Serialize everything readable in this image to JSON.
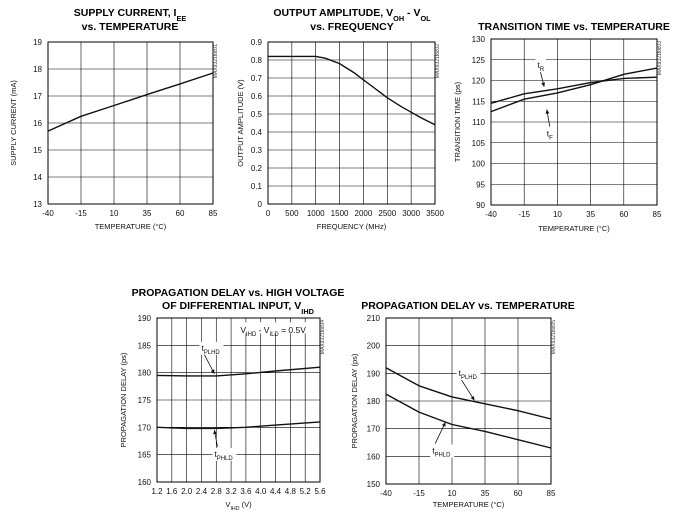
{
  "chart_data": [
    {
      "type": "line",
      "title_lines": [
        [
          {
            "t": "SUPPLY CURRENT, I"
          },
          {
            "t": "EE",
            "sub": true
          }
        ],
        [
          {
            "t": "vs. TEMPERATURE"
          }
        ]
      ],
      "xlabel": "TEMPERATURE (°C)",
      "ylabel": "SUPPLY CURRENT (mA)",
      "code": "MAX9321toc01",
      "xlim": [
        -40,
        85
      ],
      "ylim": [
        13,
        19
      ],
      "xticks": [
        -40,
        -15,
        10,
        35,
        60,
        85
      ],
      "yticks": [
        13,
        14,
        15,
        16,
        17,
        18,
        19
      ],
      "grid": true,
      "series": [
        {
          "x": [
            -40,
            -15,
            10,
            35,
            60,
            85
          ],
          "y": [
            15.7,
            16.25,
            16.65,
            17.05,
            17.45,
            17.85
          ]
        }
      ],
      "annotations": []
    },
    {
      "type": "line",
      "title_lines": [
        [
          {
            "t": "OUTPUT AMPLITUDE, V"
          },
          {
            "t": "OH",
            "sub": true
          },
          {
            "t": " - V"
          },
          {
            "t": "OL",
            "sub": true
          }
        ],
        [
          {
            "t": "vs. FREQUENCY"
          }
        ]
      ],
      "xlabel": "FREQUENCY (MHz)",
      "ylabel": "OUTPUT AMPLITUDE (V)",
      "code": "MAX9321toc02",
      "xlim": [
        0,
        3500
      ],
      "ylim": [
        0,
        0.9
      ],
      "xticks": [
        0,
        500,
        1000,
        1500,
        2000,
        2500,
        3000,
        3500
      ],
      "yticks": [
        0,
        0.1,
        0.2,
        0.3,
        0.4,
        0.5,
        0.6,
        0.7,
        0.8,
        0.9
      ],
      "grid": true,
      "series": [
        {
          "x": [
            0,
            500,
            800,
            1000,
            1200,
            1500,
            1800,
            2000,
            2200,
            2500,
            2800,
            3000,
            3200,
            3500
          ],
          "y": [
            0.82,
            0.82,
            0.82,
            0.82,
            0.81,
            0.78,
            0.73,
            0.69,
            0.65,
            0.59,
            0.54,
            0.51,
            0.48,
            0.44
          ]
        }
      ],
      "annotations": []
    },
    {
      "type": "line",
      "title_lines": [
        [
          {
            "t": "TRANSITION TIME vs. TEMPERATURE"
          }
        ]
      ],
      "xlabel": "TEMPERATURE (°C)",
      "ylabel": "TRANSITION TIME (ps)",
      "code": "MAX9321toc03",
      "xlim": [
        -40,
        85
      ],
      "ylim": [
        90,
        130
      ],
      "xticks": [
        -40,
        -15,
        10,
        35,
        60,
        85
      ],
      "yticks": [
        90,
        95,
        100,
        105,
        110,
        115,
        120,
        125,
        130
      ],
      "grid": true,
      "series": [
        {
          "name": "tR",
          "x": [
            -40,
            -15,
            10,
            35,
            60,
            85
          ],
          "y": [
            112.5,
            115.5,
            117.0,
            119.0,
            121.5,
            123.0
          ]
        },
        {
          "name": "tF",
          "x": [
            -40,
            -15,
            10,
            35,
            60,
            85
          ],
          "y": [
            114.5,
            116.8,
            118.0,
            119.5,
            120.5,
            120.8
          ]
        }
      ],
      "annotations": [
        {
          "text": "t",
          "sub": "R",
          "x": -5,
          "y": 123,
          "ax": 0,
          "ay": 118.5
        },
        {
          "text": "t",
          "sub": "F",
          "x": 2,
          "y": 106.5,
          "ax": 2,
          "ay": 113
        }
      ]
    },
    {
      "type": "line",
      "title_lines": [
        [
          {
            "t": "PROPAGATION DELAY vs. HIGH VOLTAGE"
          }
        ],
        [
          {
            "t": "OF DIFFERENTIAL INPUT, V"
          },
          {
            "t": "IHD",
            "sub": true
          }
        ]
      ],
      "xlabel_parts": [
        {
          "t": "V"
        },
        {
          "t": "IHD",
          "sub": true
        },
        {
          "t": " (V)"
        }
      ],
      "ylabel": "PROPAGATION DELAY (ps)",
      "code": "MAX9321toc04",
      "xlim": [
        1.2,
        5.6
      ],
      "ylim": [
        160,
        190
      ],
      "xticks": [
        1.2,
        1.6,
        2.0,
        2.4,
        2.8,
        3.2,
        3.6,
        4.0,
        4.4,
        4.8,
        5.2,
        5.6
      ],
      "xtick_labels": [
        "1.2",
        "1.6",
        "2.0",
        "2.4",
        "2.8",
        "3.2",
        "3.6",
        "4.0",
        "4.4",
        "4.8",
        "5.2",
        "5.6"
      ],
      "yticks": [
        160,
        165,
        170,
        175,
        180,
        185,
        190
      ],
      "grid": true,
      "note_parts": [
        {
          "t": "V"
        },
        {
          "t": "IHD",
          "sub": true
        },
        {
          "t": " - V"
        },
        {
          "t": "ILD",
          "sub": true
        },
        {
          "t": " = 0.5V"
        }
      ],
      "series": [
        {
          "name": "tPLHD",
          "x": [
            1.2,
            2.0,
            2.8,
            3.6,
            4.4,
            5.6
          ],
          "y": [
            179.5,
            179.4,
            179.4,
            179.8,
            180.3,
            181.0
          ]
        },
        {
          "name": "tPHLD",
          "x": [
            1.2,
            2.0,
            2.8,
            3.6,
            4.4,
            5.6
          ],
          "y": [
            170.0,
            169.8,
            169.8,
            170.0,
            170.4,
            171.0
          ]
        }
      ],
      "annotations": [
        {
          "text": "t",
          "sub": "PLHD",
          "x": 2.4,
          "y": 184,
          "ax": 2.75,
          "ay": 179.8
        },
        {
          "text": "t",
          "sub": "PHLD",
          "x": 2.75,
          "y": 164.6,
          "ax": 2.75,
          "ay": 169.5
        }
      ]
    },
    {
      "type": "line",
      "title_lines": [
        [
          {
            "t": "PROPAGATION DELAY vs. TEMPERATURE"
          }
        ]
      ],
      "xlabel": "TEMPERATURE (°C)",
      "ylabel": "PROPAGATION DELAY (ps)",
      "code": "MAX9321toc05",
      "xlim": [
        -40,
        85
      ],
      "ylim": [
        150,
        210
      ],
      "xticks": [
        -40,
        -15,
        10,
        35,
        60,
        85
      ],
      "yticks": [
        150,
        160,
        170,
        180,
        190,
        200,
        210
      ],
      "grid": true,
      "series": [
        {
          "name": "tPLHD",
          "x": [
            -40,
            -15,
            10,
            35,
            60,
            85
          ],
          "y": [
            192,
            185.5,
            181.5,
            179,
            176.5,
            173.5
          ]
        },
        {
          "name": "tPHLD",
          "x": [
            -40,
            -15,
            10,
            35,
            60,
            85
          ],
          "y": [
            182.5,
            176,
            171.5,
            169,
            166,
            163
          ]
        }
      ],
      "annotations": [
        {
          "text": "t",
          "sub": "PLHD",
          "x": 15,
          "y": 189,
          "ax": 27,
          "ay": 180.2
        },
        {
          "text": "t",
          "sub": "PHLD",
          "x": -5,
          "y": 161,
          "ax": 5,
          "ay": 172.3
        }
      ]
    }
  ]
}
